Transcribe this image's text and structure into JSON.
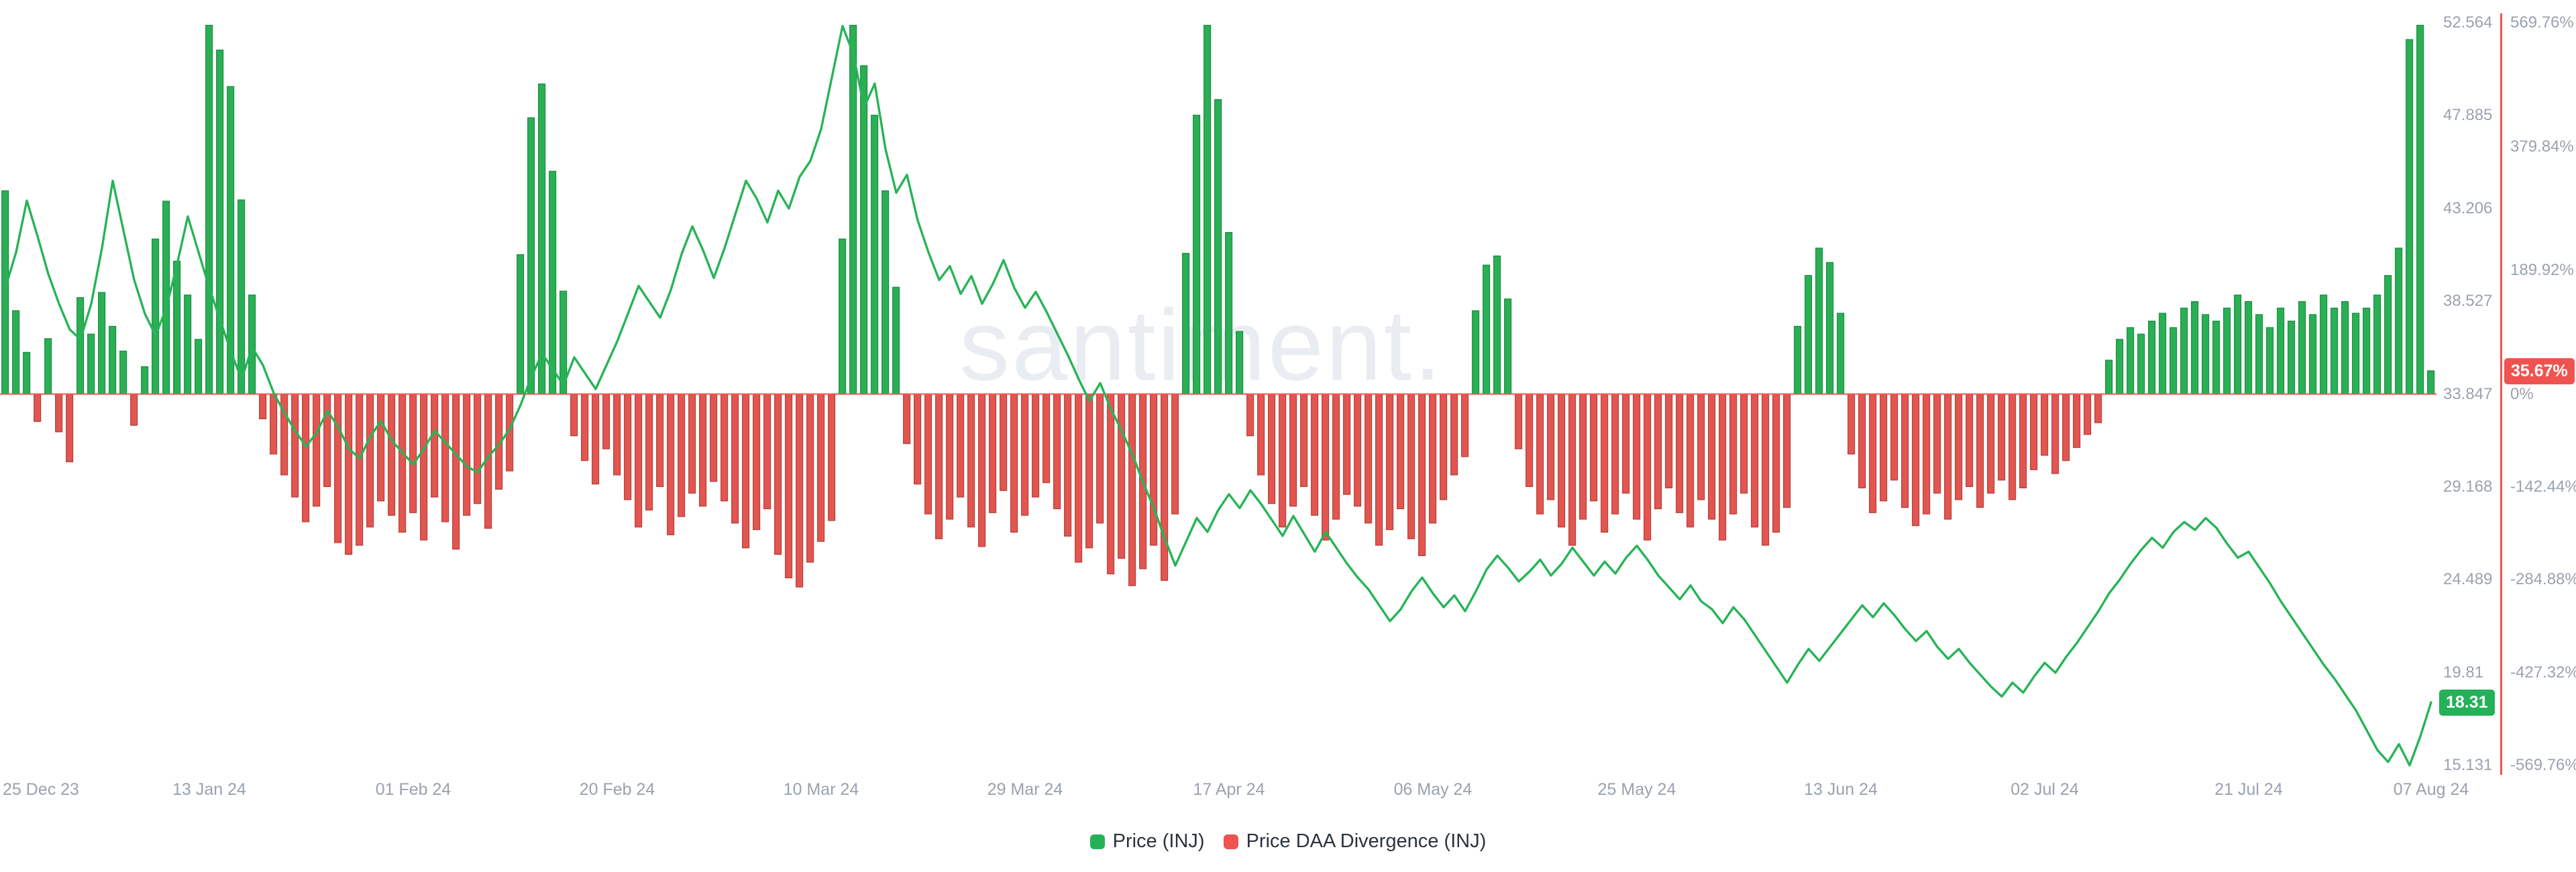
{
  "watermark": "santiment.",
  "legend": [
    {
      "label": "Price (INJ)",
      "color": "#24b158"
    },
    {
      "label": "Price DAA Divergence (INJ)",
      "color": "#ef5350"
    }
  ],
  "badges": {
    "price": "18.31",
    "price_value": 18.31,
    "divergence": "35.67%",
    "divergence_value": 35.67
  },
  "colors": {
    "price_line": "#27b457",
    "bar_positive": "#2aaf55",
    "bar_negative": "#e2564f",
    "axis_text": "#9aa2ad",
    "divergence_axis": "#ef5350"
  },
  "chart_data": {
    "type": "mixed",
    "title": "",
    "x_start_date": "25 Dec 23",
    "x_end_date": "07 Aug 24",
    "x_ticks": [
      {
        "label": "25 Dec 23",
        "index": 0
      },
      {
        "label": "13 Jan 24",
        "index": 19
      },
      {
        "label": "01 Feb 24",
        "index": 38
      },
      {
        "label": "20 Feb 24",
        "index": 57
      },
      {
        "label": "10 Mar 24",
        "index": 76
      },
      {
        "label": "29 Mar 24",
        "index": 95
      },
      {
        "label": "17 Apr 24",
        "index": 114
      },
      {
        "label": "06 May 24",
        "index": 133
      },
      {
        "label": "25 May 24",
        "index": 152
      },
      {
        "label": "13 Jun 24",
        "index": 171
      },
      {
        "label": "02 Jul 24",
        "index": 190
      },
      {
        "label": "21 Jul 24",
        "index": 209
      },
      {
        "label": "07 Aug 24",
        "index": 226
      }
    ],
    "y_axis_price": {
      "tick_labels": [
        "52.564",
        "47.885",
        "43.206",
        "38.527",
        "33.847",
        "29.168",
        "24.489",
        "19.81",
        "15.131"
      ],
      "tick_values": [
        52.564,
        47.885,
        43.206,
        38.527,
        33.847,
        29.168,
        24.489,
        19.81,
        15.131
      ],
      "min": 15.131,
      "max": 52.564
    },
    "y_axis_divergence": {
      "tick_labels": [
        "569.76%",
        "379.84%",
        "189.92%",
        "0%",
        "-142.44%",
        "-284.88%",
        "-427.32%",
        "-569.76%"
      ],
      "tick_values": [
        569.76,
        379.84,
        189.92,
        0,
        -142.44,
        -284.88,
        -427.32,
        -569.76
      ],
      "min": -569.76,
      "max": 569.76
    },
    "series": [
      {
        "name": "Price (INJ)",
        "type": "line",
        "values": [
          39.2,
          41.0,
          43.6,
          41.8,
          39.9,
          38.4,
          37.1,
          36.6,
          38.4,
          41.2,
          44.6,
          42.1,
          39.6,
          37.9,
          36.8,
          38.2,
          40.4,
          42.8,
          41.0,
          39.2,
          37.6,
          36.0,
          34.6,
          36.2,
          35.3,
          33.9,
          32.9,
          32.0,
          31.2,
          31.9,
          33.0,
          32.2,
          31.1,
          30.6,
          31.7,
          32.5,
          31.5,
          30.9,
          30.3,
          31.1,
          32.0,
          31.4,
          30.8,
          30.2,
          29.9,
          30.7,
          31.3,
          32.1,
          33.3,
          34.7,
          35.9,
          35.1,
          34.3,
          35.7,
          34.9,
          34.1,
          35.3,
          36.5,
          37.9,
          39.3,
          38.5,
          37.7,
          39.1,
          40.9,
          42.3,
          41.1,
          39.7,
          41.2,
          42.9,
          44.6,
          43.7,
          42.5,
          44.1,
          43.2,
          44.8,
          45.6,
          47.2,
          49.8,
          52.4,
          51.0,
          48.3,
          49.5,
          46.2,
          44.0,
          44.9,
          42.6,
          41.0,
          39.6,
          40.3,
          38.9,
          39.8,
          38.4,
          39.4,
          40.6,
          39.2,
          38.2,
          39.0,
          38.0,
          36.9,
          35.8,
          34.6,
          33.5,
          34.4,
          33.1,
          32.0,
          30.8,
          29.4,
          28.1,
          26.6,
          25.2,
          26.4,
          27.6,
          26.9,
          28.0,
          28.8,
          28.1,
          29.0,
          28.3,
          27.5,
          26.7,
          27.7,
          26.8,
          25.9,
          26.9,
          26.1,
          25.3,
          24.6,
          24.0,
          23.2,
          22.4,
          23.0,
          23.9,
          24.6,
          23.8,
          23.1,
          23.7,
          22.9,
          23.9,
          25.0,
          25.7,
          25.1,
          24.4,
          24.9,
          25.5,
          24.7,
          25.3,
          26.1,
          25.4,
          24.7,
          25.4,
          24.8,
          25.6,
          26.2,
          25.5,
          24.7,
          24.1,
          23.5,
          24.2,
          23.4,
          23.0,
          22.3,
          23.1,
          22.5,
          21.7,
          20.9,
          20.1,
          19.3,
          20.2,
          21.0,
          20.4,
          21.1,
          21.8,
          22.5,
          23.2,
          22.6,
          23.3,
          22.7,
          22.0,
          21.4,
          21.9,
          21.1,
          20.5,
          21.0,
          20.3,
          19.7,
          19.1,
          18.6,
          19.3,
          18.8,
          19.6,
          20.3,
          19.8,
          20.6,
          21.3,
          22.1,
          22.9,
          23.8,
          24.5,
          25.3,
          26.0,
          26.6,
          26.1,
          26.9,
          27.4,
          27.0,
          27.6,
          27.1,
          26.3,
          25.6,
          25.9,
          25.1,
          24.3,
          23.4,
          22.6,
          21.8,
          21.0,
          20.2,
          19.5,
          18.7,
          17.9,
          16.9,
          15.9,
          15.3,
          16.2,
          15.13,
          16.6,
          18.31
        ]
      },
      {
        "name": "Price DAA Divergence (INJ)",
        "type": "bar",
        "values": [
          312,
          128,
          64,
          -42,
          85,
          -58,
          -104,
          148,
          92,
          156,
          104,
          66,
          -48,
          42,
          238,
          296,
          204,
          152,
          84,
          566,
          528,
          472,
          298,
          152,
          -38,
          -92,
          -124,
          -158,
          -196,
          -172,
          -142,
          -228,
          -246,
          -232,
          -204,
          -164,
          -186,
          -212,
          -182,
          -224,
          -158,
          -196,
          -238,
          -186,
          -168,
          -206,
          -146,
          -118,
          214,
          424,
          476,
          342,
          158,
          -64,
          -102,
          -138,
          -84,
          -124,
          -162,
          -204,
          -178,
          -142,
          -216,
          -188,
          -152,
          -172,
          -134,
          -164,
          -198,
          -236,
          -208,
          -176,
          -246,
          -282,
          -296,
          -258,
          -226,
          -194,
          238,
          566,
          504,
          428,
          312,
          164,
          -76,
          -138,
          -184,
          -222,
          -192,
          -158,
          -204,
          -234,
          -182,
          -148,
          -212,
          -186,
          -158,
          -136,
          -176,
          -218,
          -258,
          -236,
          -198,
          -276,
          -252,
          -294,
          -268,
          -232,
          -286,
          -184,
          216,
          428,
          566,
          452,
          248,
          96,
          -64,
          -124,
          -168,
          -204,
          -172,
          -142,
          -186,
          -224,
          -192,
          -154,
          -172,
          -198,
          -232,
          -208,
          -176,
          -222,
          -248,
          -198,
          -162,
          -124,
          -96,
          128,
          198,
          212,
          146,
          -84,
          -142,
          -184,
          -162,
          -204,
          -232,
          -192,
          -164,
          -212,
          -184,
          -152,
          -192,
          -224,
          -176,
          -144,
          -182,
          -204,
          -162,
          -192,
          -224,
          -184,
          -152,
          -204,
          -232,
          -212,
          -174,
          104,
          182,
          224,
          202,
          124,
          -92,
          -144,
          -182,
          -164,
          -132,
          -174,
          -202,
          -184,
          -152,
          -192,
          -162,
          -142,
          -174,
          -152,
          -132,
          -162,
          -144,
          -116,
          -94,
          -122,
          -102,
          -82,
          -62,
          -44,
          52,
          84,
          102,
          92,
          112,
          124,
          102,
          132,
          142,
          122,
          112,
          132,
          152,
          142,
          122,
          102,
          132,
          112,
          142,
          122,
          152,
          132,
          142,
          124,
          132,
          152,
          182,
          224,
          544,
          566,
          35.67
        ]
      }
    ]
  }
}
